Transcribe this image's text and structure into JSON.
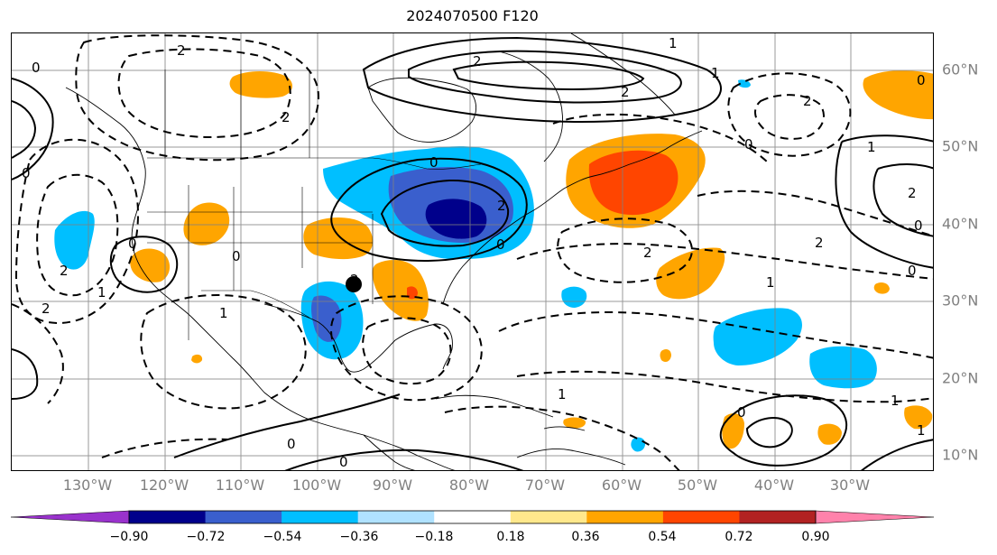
{
  "title": "2024070500 F120",
  "lon_labels": [
    "130°W",
    "120°W",
    "110°W",
    "100°W",
    "90°W",
    "80°W",
    "70°W",
    "60°W",
    "50°W",
    "40°W",
    "30°W"
  ],
  "lat_labels": [
    "60°N",
    "50°N",
    "40°N",
    "30°N",
    "20°N",
    "10°N"
  ],
  "colorbar": {
    "ticks": [
      "−0.90",
      "−0.72",
      "−0.54",
      "−0.36",
      "−0.18",
      "0.18",
      "0.36",
      "0.54",
      "0.72",
      "0.90"
    ],
    "colors": [
      "#9932cc",
      "#00008b",
      "#3a5fcd",
      "#00bfff",
      "#b0e2ff",
      "#ffffff",
      "#ffe88c",
      "#ffa500",
      "#ff4500",
      "#b22222",
      "#ff82ab"
    ]
  },
  "fill_colors": {
    "neg_strong": "#00008b",
    "neg_mod": "#3a5fcd",
    "neg_light": "#00bfff",
    "pos_light": "#ffa500",
    "pos_mod": "#ff4500",
    "pos_strong": "#b22222"
  },
  "contour_labels": [
    "2",
    "0",
    "0",
    "2",
    "0",
    "2",
    "2",
    "1",
    "0",
    "1",
    "2",
    "0",
    "2",
    "2",
    "2",
    "1",
    "1",
    "2",
    "0",
    "2",
    "0",
    "0",
    "1",
    "2",
    "0",
    "0",
    "1",
    "0",
    "1",
    "1",
    "2",
    "0",
    "0",
    "1"
  ],
  "marker": "storm-center-marker"
}
